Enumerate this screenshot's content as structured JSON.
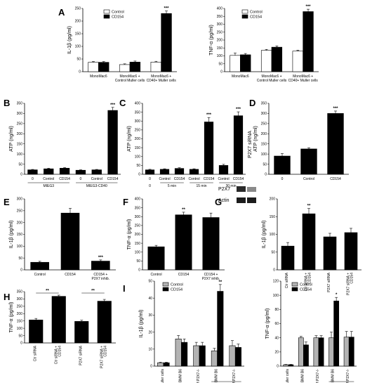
{
  "colors": {
    "white": "#ffffff",
    "black": "#000000",
    "gray": "#b3b3b3"
  },
  "chart_data": [
    {
      "id": "A1",
      "panel_label": "A",
      "type": "bar",
      "ylabel": "IL-1β (pg/ml)",
      "ylim": [
        0,
        250
      ],
      "yticks": [
        0,
        50,
        100,
        150,
        200,
        250
      ],
      "legend": [
        "Control",
        "CD154"
      ],
      "categories": [
        "MonoMac6",
        "MonoMac6 + Control Muller cells",
        "MonoMac6 + CD40+ Muller cells"
      ],
      "series": [
        {
          "name": "Control",
          "color": "white",
          "values": [
            37,
            28,
            38
          ],
          "errors": [
            3,
            3,
            3
          ]
        },
        {
          "name": "CD154",
          "color": "black",
          "values": [
            37,
            38,
            230
          ],
          "errors": [
            3,
            4,
            10
          ]
        }
      ],
      "annotations": [
        {
          "index": 2,
          "series": 1,
          "text": "***"
        }
      ]
    },
    {
      "id": "A2",
      "type": "bar",
      "ylabel": "TNF-α (pg/ml)",
      "ylim": [
        0,
        400
      ],
      "yticks": [
        0,
        50,
        100,
        150,
        200,
        250,
        300,
        350,
        400
      ],
      "legend": [
        "Control",
        "CD154"
      ],
      "categories": [
        "MonoMac6",
        "MonoMac6 + Control Muller cells",
        "MonoMac6 + CD40+ Muller cells"
      ],
      "series": [
        {
          "name": "Control",
          "color": "white",
          "values": [
            103,
            135,
            130
          ],
          "errors": [
            15,
            6,
            6
          ]
        },
        {
          "name": "CD154",
          "color": "black",
          "values": [
            107,
            155,
            380
          ],
          "errors": [
            8,
            8,
            15
          ]
        }
      ],
      "annotations": [
        {
          "index": 2,
          "series": 1,
          "text": "***"
        }
      ]
    },
    {
      "id": "B",
      "panel_label": "B",
      "type": "bar",
      "ylabel": "ATP (ng/ml)",
      "ylim": [
        0,
        350
      ],
      "yticks": [
        0,
        50,
        100,
        150,
        200,
        250,
        300,
        350
      ],
      "categories": [
        "0",
        "Control",
        "CD154",
        "0",
        "Control",
        "CD154"
      ],
      "groups": [
        {
          "label": "MIEG3",
          "from": 0,
          "to": 2
        },
        {
          "label": "MIEG3-CD40",
          "from": 3,
          "to": 5
        }
      ],
      "series": [
        {
          "color": "black",
          "values": [
            22,
            27,
            30,
            20,
            22,
            315
          ],
          "errors": [
            2,
            3,
            3,
            2,
            2,
            15
          ]
        }
      ],
      "annotations": [
        {
          "index": 5,
          "series": 0,
          "text": "***"
        }
      ]
    },
    {
      "id": "C",
      "panel_label": "C",
      "type": "bar",
      "ylabel": "ATP (ng/ml)",
      "ylim": [
        0,
        400
      ],
      "yticks": [
        0,
        50,
        100,
        150,
        200,
        250,
        300,
        350,
        400
      ],
      "categories": [
        "0",
        "Control",
        "CD154",
        "Control",
        "CD154",
        "Control",
        "CD154"
      ],
      "groups": [
        {
          "label": "0",
          "from": 0,
          "to": 0
        },
        {
          "label": "5 min",
          "from": 1,
          "to": 2
        },
        {
          "label": "15 min",
          "from": 3,
          "to": 4
        },
        {
          "label": "30 min",
          "from": 5,
          "to": 6
        }
      ],
      "series": [
        {
          "color": "black",
          "values": [
            25,
            28,
            33,
            28,
            295,
            50,
            330
          ],
          "errors": [
            3,
            3,
            4,
            3,
            25,
            6,
            22
          ]
        }
      ],
      "annotations": [
        {
          "index": 4,
          "series": 0,
          "text": "***"
        },
        {
          "index": 6,
          "series": 0,
          "text": "***"
        }
      ]
    },
    {
      "id": "D",
      "panel_label": "D",
      "type": "bar",
      "ylabel": "ATP (ng/ml)",
      "ylim": [
        0,
        350
      ],
      "yticks": [
        0,
        50,
        100,
        150,
        200,
        250,
        300,
        350
      ],
      "categories": [
        "0",
        "Control",
        "CD154"
      ],
      "series": [
        {
          "color": "black",
          "values": [
            90,
            125,
            300
          ],
          "errors": [
            12,
            6,
            12
          ]
        }
      ],
      "annotations": [
        {
          "index": 2,
          "series": 0,
          "text": "***"
        }
      ]
    },
    {
      "id": "E",
      "panel_label": "E",
      "type": "bar",
      "ylabel": "IL-1β (pg/ml)",
      "ylim": [
        0,
        300
      ],
      "yticks": [
        0,
        50,
        100,
        150,
        200,
        250,
        300
      ],
      "categories": [
        "Control",
        "CD154",
        "CD154 + P2X7 inhib."
      ],
      "series": [
        {
          "color": "black",
          "values": [
            32,
            240,
            37
          ],
          "errors": [
            4,
            20,
            5
          ]
        }
      ],
      "annotations": [
        {
          "index": 2,
          "series": 0,
          "text": "***"
        }
      ]
    },
    {
      "id": "F",
      "panel_label": "F",
      "type": "bar",
      "ylabel": "TNF-α (pg/ml)",
      "ylim": [
        0,
        400
      ],
      "yticks": [
        0,
        50,
        100,
        150,
        200,
        250,
        300,
        350,
        400
      ],
      "categories": [
        "Control",
        "CD154",
        "CD154 + P2X7 inhib."
      ],
      "series": [
        {
          "color": "black",
          "values": [
            130,
            310,
            295
          ],
          "errors": [
            8,
            15,
            25
          ]
        }
      ],
      "annotations": [
        {
          "index": 1,
          "series": 0,
          "text": "**"
        }
      ]
    },
    {
      "id": "G",
      "panel_label": "G",
      "type": "bar",
      "ylabel": "IL-1β (pg/ml)",
      "ylim": [
        0,
        200
      ],
      "yticks": [
        0,
        50,
        100,
        150,
        200
      ],
      "categories": [
        "Ctr siRNA",
        "Ctr siRNA + CD154",
        "P2X7 siRNA",
        "P2X7 siRNA + CD154"
      ],
      "series": [
        {
          "color": "black",
          "values": [
            67,
            158,
            93,
            105
          ],
          "errors": [
            10,
            15,
            10,
            12
          ]
        }
      ],
      "annotations": [
        {
          "index": 1,
          "series": 0,
          "text": "**"
        }
      ]
    },
    {
      "id": "H",
      "panel_label": "H",
      "type": "bar",
      "ylabel": "TNF-α (pg/ml)",
      "ylim": [
        0,
        350
      ],
      "yticks": [
        0,
        50,
        100,
        150,
        200,
        250,
        300,
        350
      ],
      "categories": [
        "Ctr siRNA",
        "Ctr siRNA + CD154",
        "P2X7 siRNA",
        "P2X7 siRNA + CD154"
      ],
      "series": [
        {
          "color": "black",
          "values": [
            157,
            318,
            147,
            285
          ],
          "errors": [
            10,
            8,
            8,
            12
          ]
        }
      ],
      "brackets": [
        {
          "from": 0,
          "to": 1,
          "text": "**"
        },
        {
          "from": 2,
          "to": 3,
          "text": "**"
        }
      ]
    },
    {
      "id": "I1",
      "panel_label": "I",
      "type": "bar",
      "ylabel": "IL-1β (pg/ml)",
      "ylim": [
        0,
        50
      ],
      "yticks": [
        0,
        10,
        20,
        30,
        40,
        50
      ],
      "legend": [
        "Control",
        "CD154"
      ],
      "categories": [
        "Muller cells",
        "BMM B6",
        "BMM P2X7-/-",
        "BMM B6",
        "BMM P2X7-/-"
      ],
      "subgroup_label": "+ Muller cells",
      "subgroup_from": 3,
      "series": [
        {
          "name": "Control",
          "color": "gray",
          "values": [
            2,
            16,
            12,
            9,
            12
          ],
          "errors": [
            0.3,
            2,
            2,
            1.5,
            3
          ]
        },
        {
          "name": "CD154",
          "color": "black",
          "values": [
            2,
            14,
            12,
            44,
            11
          ],
          "errors": [
            0.3,
            2,
            2,
            4,
            2
          ]
        }
      ],
      "annotations": [
        {
          "index": 3,
          "series": 1,
          "text": "**"
        }
      ]
    },
    {
      "id": "I2",
      "type": "bar",
      "ylabel": "TNF-α (pg/ml)",
      "ylim": [
        0,
        120
      ],
      "yticks": [
        0,
        20,
        40,
        60,
        80,
        100,
        120
      ],
      "legend": [
        "Control",
        "CD154"
      ],
      "categories": [
        "Muller cells",
        "BMM B6",
        "BMM P2X7-/-",
        "BMM B6",
        "BMM P2X7-/-"
      ],
      "subgroup_label": "+ Muller cells",
      "subgroup_from": 3,
      "series": [
        {
          "name": "Control",
          "color": "gray",
          "values": [
            2,
            40,
            40,
            40,
            41
          ],
          "errors": [
            0.5,
            2,
            3,
            8,
            8
          ]
        },
        {
          "name": "CD154",
          "color": "black",
          "values": [
            2,
            30,
            40,
            92,
            41
          ],
          "errors": [
            0.5,
            4,
            3,
            5,
            8
          ]
        }
      ],
      "annotations": [
        {
          "index": 3,
          "series": 1,
          "text": "*"
        }
      ]
    }
  ],
  "blot": {
    "header": [
      "Ctr siRNA",
      "P2X7 siRNA"
    ],
    "rows": [
      "P2X7",
      "Actin"
    ]
  }
}
